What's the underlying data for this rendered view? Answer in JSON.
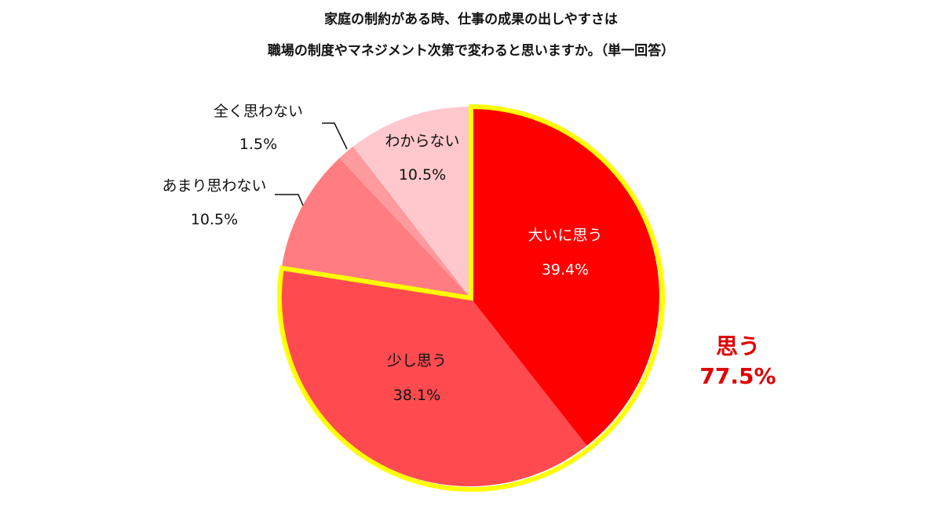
{
  "chart_data": {
    "type": "pie",
    "title_lines": [
      "家庭の制約がある時、仕事の成果の出しやすさは",
      "職場の制度やマネジメント次第で変わると思いますか。（単一回答）"
    ],
    "slices": [
      {
        "label": "大いに思う",
        "value": 39.4,
        "value_label": "39.4%",
        "color": "#ff0000",
        "text_color": "#ffffff"
      },
      {
        "label": "少し思う",
        "value": 38.1,
        "value_label": "38.1%",
        "color": "#ff4b50",
        "text_color": "#111111"
      },
      {
        "label": "あまり思わない",
        "value": 10.5,
        "value_label": "10.5%",
        "color": "#ff7c80",
        "text_color": "#111111"
      },
      {
        "label": "全く思わない",
        "value": 1.5,
        "value_label": "1.5%",
        "color": "#ff9a9e",
        "text_color": "#111111"
      },
      {
        "label": "わからない",
        "value": 10.5,
        "value_label": "10.5%",
        "color": "#ffc8cd",
        "text_color": "#111111"
      }
    ],
    "start_angle": "top",
    "direction": "clockwise",
    "highlight": {
      "label": "思う",
      "value_label": "77.5%",
      "outline_color": "#ffff00",
      "text_color": "#e00000",
      "slices": [
        "大いに思う",
        "少し思う"
      ]
    }
  }
}
